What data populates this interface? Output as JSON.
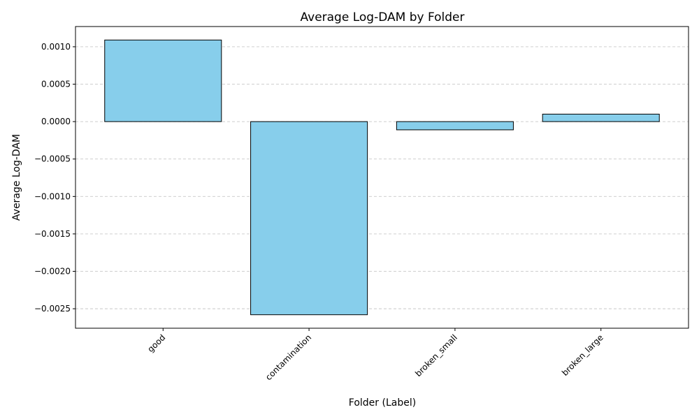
{
  "chart_data": {
    "type": "bar",
    "title": "Average Log-DAM by Folder",
    "xlabel": "Folder (Label)",
    "ylabel": "Average Log-DAM",
    "categories": [
      "good",
      "contamination",
      "broken_small",
      "broken_large"
    ],
    "values": [
      0.00109,
      -0.00258,
      -0.00011,
      0.0001
    ],
    "ylim": [
      -0.00276,
      0.00127
    ],
    "yticks": [
      0.001,
      0.0005,
      0.0,
      -0.0005,
      -0.001,
      -0.0015,
      -0.002,
      -0.0025
    ],
    "ytick_labels": [
      "0.0010",
      "0.0005",
      "0.0000",
      "−0.0005",
      "−0.0010",
      "−0.0015",
      "−0.0020",
      "−0.0025"
    ],
    "grid": "y-dashed",
    "bar_color": "#87CEEB",
    "bar_edge_color": "#000000",
    "grid_color": "#c8c8c8"
  }
}
